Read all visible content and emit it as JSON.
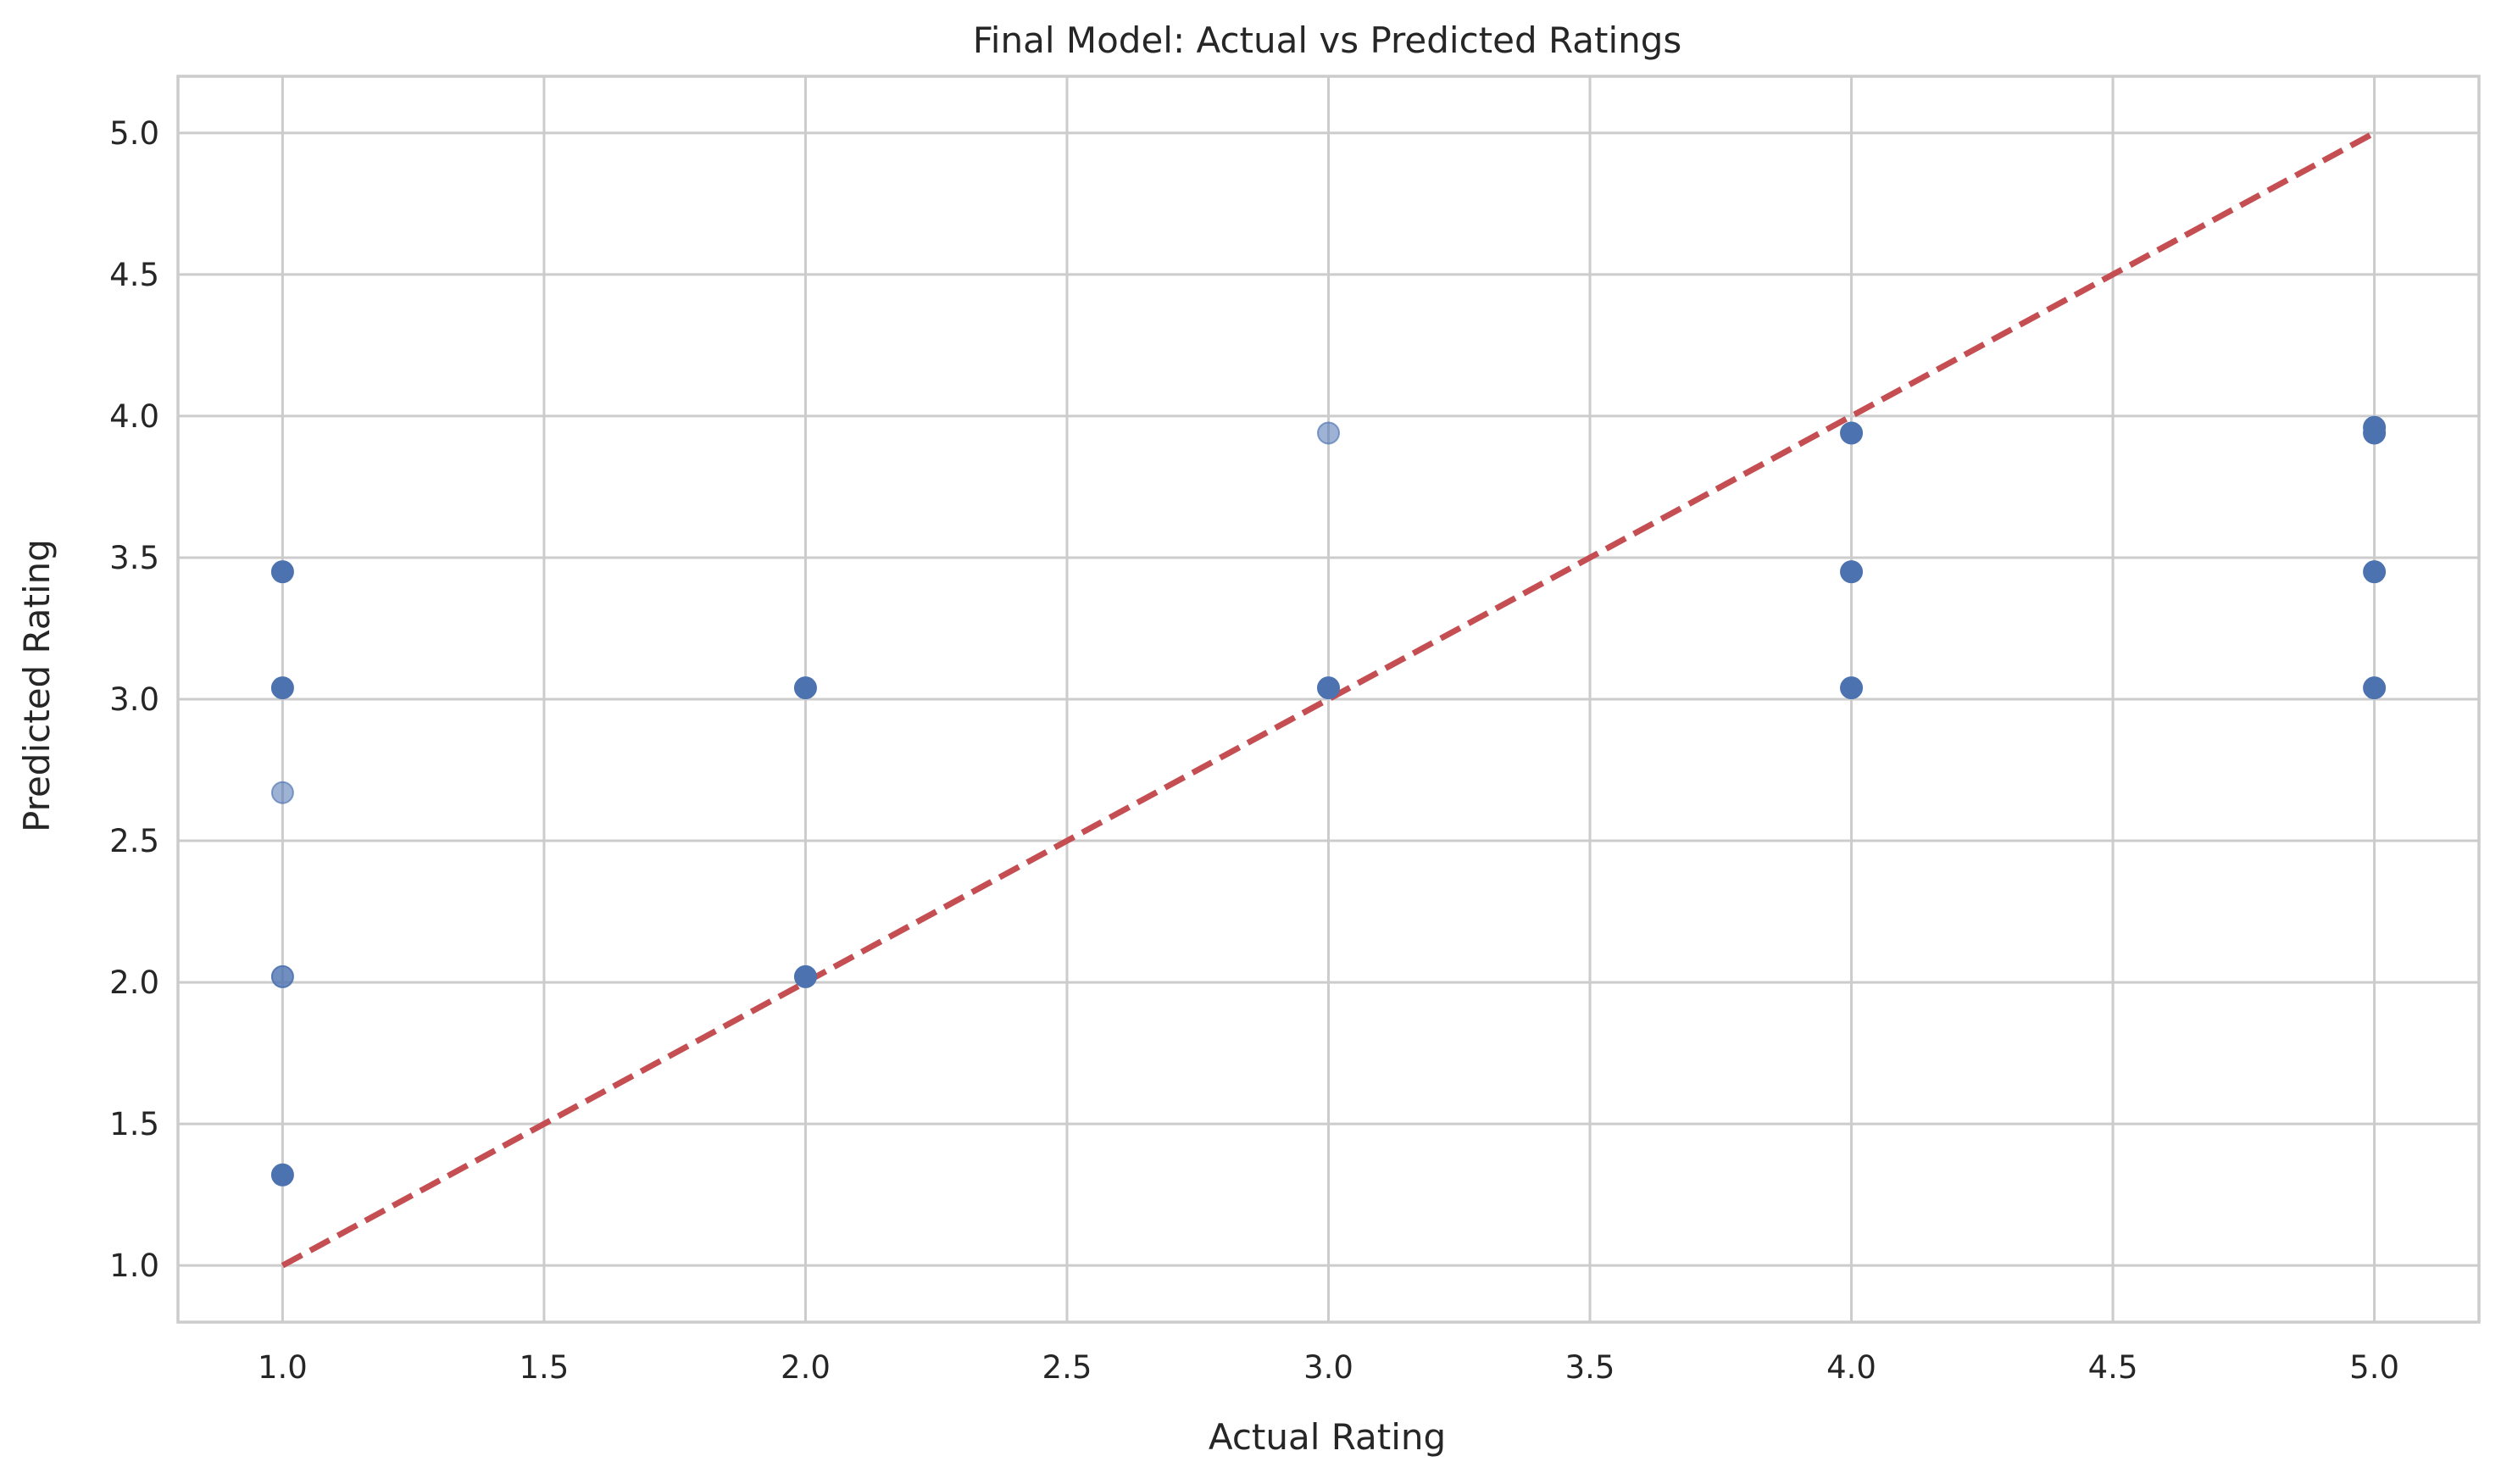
{
  "chart_data": {
    "type": "scatter",
    "title": "Final Model: Actual vs Predicted Ratings",
    "xlabel": "Actual Rating",
    "ylabel": "Predicted Rating",
    "xlim": [
      0.8,
      5.2
    ],
    "ylim": [
      0.8,
      5.2
    ],
    "xticks": [
      "1.0",
      "1.5",
      "2.0",
      "2.5",
      "3.0",
      "3.5",
      "4.0",
      "4.5",
      "5.0"
    ],
    "yticks": [
      "1.0",
      "1.5",
      "2.0",
      "2.5",
      "3.0",
      "3.5",
      "4.0",
      "4.5",
      "5.0"
    ],
    "grid": true,
    "series": [
      {
        "color": "#4c72b0",
        "points": [
          {
            "x": 1,
            "y": 3.45,
            "opacity": 1.0
          },
          {
            "x": 1,
            "y": 3.04,
            "opacity": 1.0
          },
          {
            "x": 1,
            "y": 2.67,
            "opacity": 0.55
          },
          {
            "x": 1,
            "y": 2.02,
            "opacity": 0.8
          },
          {
            "x": 1,
            "y": 1.32,
            "opacity": 1.0
          },
          {
            "x": 2,
            "y": 3.04,
            "opacity": 1.0
          },
          {
            "x": 2,
            "y": 2.02,
            "opacity": 1.0
          },
          {
            "x": 3,
            "y": 3.94,
            "opacity": 0.55
          },
          {
            "x": 3,
            "y": 3.04,
            "opacity": 1.0
          },
          {
            "x": 4,
            "y": 3.94,
            "opacity": 1.0
          },
          {
            "x": 4,
            "y": 3.45,
            "opacity": 1.0
          },
          {
            "x": 4,
            "y": 3.04,
            "opacity": 1.0
          },
          {
            "x": 5,
            "y": 3.96,
            "opacity": 1.0
          },
          {
            "x": 5,
            "y": 3.94,
            "opacity": 1.0
          },
          {
            "x": 5,
            "y": 3.45,
            "opacity": 1.0
          },
          {
            "x": 5,
            "y": 3.04,
            "opacity": 1.0
          }
        ]
      }
    ],
    "reference_line": {
      "x": [
        1,
        5
      ],
      "y": [
        1,
        5
      ],
      "style": "dashed",
      "color": "#c44e52"
    }
  }
}
